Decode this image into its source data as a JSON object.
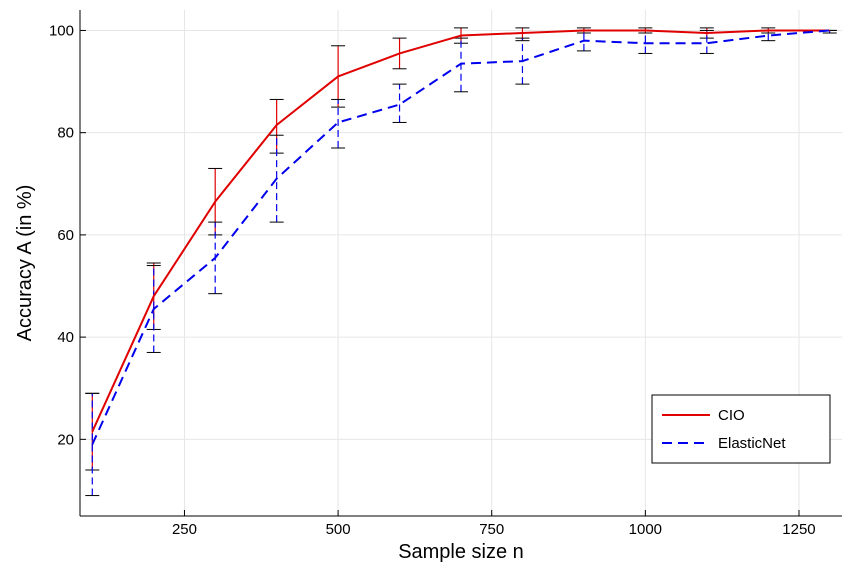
{
  "chart_data": {
    "type": "line",
    "title": "",
    "xlabel": "Sample size n",
    "ylabel": "Accuracy A (in %)",
    "xlim": [
      80,
      1320
    ],
    "ylim": [
      5,
      104
    ],
    "xticks": [
      250,
      500,
      750,
      1000,
      1250
    ],
    "yticks": [
      20,
      40,
      60,
      80,
      100
    ],
    "grid": true,
    "legend_position": "bottom-right",
    "x": [
      100,
      200,
      300,
      400,
      500,
      600,
      700,
      800,
      900,
      1000,
      1100,
      1200,
      1300
    ],
    "series": [
      {
        "name": "CIO",
        "color": "#e00000",
        "line_style": "solid",
        "values": [
          21.5,
          48,
          66.5,
          81.5,
          91,
          95.5,
          99,
          99.5,
          100,
          100,
          99.5,
          100,
          100
        ],
        "error_low": [
          14,
          41.5,
          60,
          76,
          85,
          92.5,
          97.5,
          98,
          99.5,
          99.5,
          98.5,
          99.5,
          100
        ],
        "error_high": [
          29,
          54.5,
          73,
          86.5,
          97,
          98.5,
          100.5,
          100.5,
          100.5,
          100.5,
          100.5,
          100.5,
          100
        ]
      },
      {
        "name": "ElasticNet",
        "color": "#0000ee",
        "line_style": "dashed",
        "values": [
          19,
          45.5,
          55.5,
          71,
          82,
          85.5,
          93.5,
          94,
          98,
          97.5,
          97.5,
          99,
          100
        ],
        "error_low": [
          9,
          37,
          48.5,
          62.5,
          77,
          82,
          88,
          89.5,
          96,
          95.5,
          95.5,
          98,
          99.5
        ],
        "error_high": [
          29,
          54,
          62.5,
          79.5,
          86.5,
          89.5,
          98.5,
          98.5,
          100,
          100,
          100,
          100,
          100
        ]
      }
    ]
  }
}
